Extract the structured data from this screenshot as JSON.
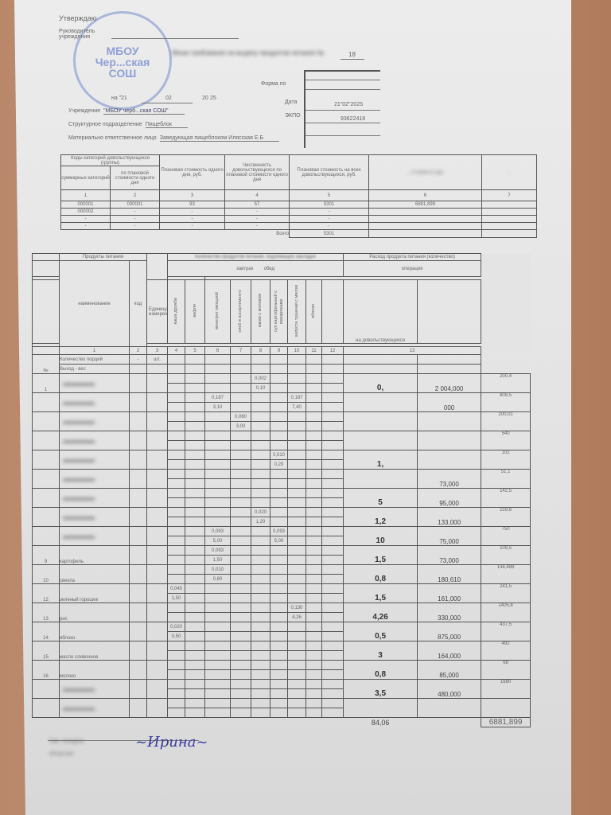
{
  "header": {
    "approve": "Утверждаю",
    "head_label": "Руководитель учреждения",
    "stamp_text": [
      "МБОУ",
      "Чер...ская",
      "СОШ"
    ],
    "doc_no": "18",
    "date_prefix": "на \"",
    "day": "21",
    "month": "02",
    "year_prefix": "20",
    "year": "25",
    "form_label": "Форма по",
    "date_label": "Дата",
    "date_value": "21\"02\"2025",
    "okpo_label": "ЭКПО",
    "okpo_value": "93622418",
    "institution_label": "Учреждение",
    "institution_value": "\"МБОУ черб...ская СОШ\"",
    "unit_label": "Структурное подразделение",
    "unit_value": "Пищеблок",
    "responsible_label": "Материально ответственное лицо",
    "responsible_value": "Заведующая пищеблоком Илясская Е.Б"
  },
  "categories_table": {
    "headers": [
      "Коды категорий довольствующихся (группы)",
      "суммарных категорий",
      "по плановой стоимости одного дня",
      "Плановая стоимость одного дня, руб.",
      "Численность довольствующихся по плановой стоимости одного дня",
      "Плановая стоимость на всех довольствующихся, руб.",
      "... стоимость руб.",
      "..."
    ],
    "col_numbers": [
      "1",
      "2",
      "3",
      "4",
      "5",
      "6",
      "7"
    ],
    "rows": [
      [
        "000001",
        "000001",
        "93",
        "57",
        "5301",
        "6881,899",
        ""
      ],
      [
        "000002",
        "-",
        "-",
        "-",
        "-",
        "",
        ""
      ],
      [
        "-",
        "-",
        "-",
        "-",
        "-",
        "",
        ""
      ],
      [
        "-",
        "-",
        "-",
        "-",
        "-",
        "",
        ""
      ]
    ],
    "total_label": "Всего",
    "total_value": "5301"
  },
  "products_table": {
    "h_products": "Продукты питания",
    "h_name": "наименование",
    "h_code": "код",
    "h_unit": "Единица измерения",
    "h_qty": "Количество продуктов питания, подлежащих закладке",
    "h_breakfast": "завтрак",
    "h_lunch": "обед",
    "dishes": [
      "каша дружба",
      "вафли",
      "винегрет овощной",
      "хлеб в ассортименте",
      "какао с молоком",
      "суп картофельный с макаронами",
      "капуста тушеная с мясом",
      "яблоко",
      ""
    ],
    "h_expense": "Расход продукта питания (количество)",
    "h_operation": "операция",
    "h_for": "на довольствующихся",
    "col_numbers": [
      "1",
      "2",
      "3",
      "4",
      "5",
      "6",
      "7",
      "8",
      "9",
      "10",
      "11",
      "12",
      "13"
    ],
    "portions_label": "Количество порций",
    "portions_code": "-",
    "portions_unit": "шт.",
    "yield_label": "Выход - вес",
    "no_label": "№",
    "rows": [
      {
        "no": "1",
        "name": "",
        "vals": {
          "8": [
            "0,002",
            "0,10"
          ]
        },
        "qty": "0,",
        "price": "2 004,000",
        "sum": "200,4"
      },
      {
        "no": "",
        "name": "",
        "vals": {
          "6": [
            "0,187",
            "3,10"
          ],
          "10": [
            "0,187",
            "7,40"
          ]
        },
        "qty": "",
        "price": "000",
        "sum": "808,5"
      },
      {
        "no": "",
        "name": "",
        "vals": {
          "7": [
            "0,060",
            "3,00"
          ]
        },
        "qty": "",
        "price": "",
        "sum": "200,01"
      },
      {
        "no": "",
        "name": "",
        "vals": {},
        "qty": "",
        "price": "",
        "sum": "540"
      },
      {
        "no": "",
        "name": "",
        "vals": {
          "9": [
            "0,010",
            "0,20"
          ]
        },
        "qty": "1,",
        "price": "",
        "sum": "102"
      },
      {
        "no": "",
        "name": "",
        "vals": {},
        "qty": "",
        "price": "73,000",
        "sum": "51,1"
      },
      {
        "no": "",
        "name": "",
        "vals": {},
        "qty": "5",
        "price": "95,000",
        "sum": "142,5"
      },
      {
        "no": "",
        "name": "",
        "vals": {
          "8": [
            "0,020",
            "1,20"
          ]
        },
        "qty": "1,2",
        "price": "133,000",
        "sum": "159,6"
      },
      {
        "no": "",
        "name": "",
        "vals": {
          "6": [
            "0,093",
            "5,00"
          ],
          "9": [
            "0,093",
            "5,00"
          ]
        },
        "qty": "10",
        "price": "75,000",
        "sum": "750"
      },
      {
        "no": "9",
        "name": "картофель",
        "vals": {
          "6": [
            "0,093",
            "1,50"
          ]
        },
        "qty": "1,5",
        "price": "73,000",
        "sum": "109,5"
      },
      {
        "no": "10",
        "name": "свекла",
        "vals": {
          "6": [
            "0,010",
            "0,80"
          ]
        },
        "qty": "0,8",
        "price": "180,610",
        "sum": "144,488"
      },
      {
        "no": "12",
        "name": "зеленый горошек",
        "vals": {
          "4": [
            "0,045",
            "1,50"
          ]
        },
        "qty": "1,5",
        "price": "161,000",
        "sum": "241,5"
      },
      {
        "no": "13",
        "name": "рис",
        "vals": {
          "10": [
            "0,130",
            "4,26"
          ]
        },
        "qty": "4,26",
        "price": "330,000",
        "sum": "1405,8"
      },
      {
        "no": "14",
        "name": "яблоко",
        "vals": {
          "4": [
            "0,020",
            "0,50"
          ]
        },
        "qty": "0,5",
        "price": "875,000",
        "sum": "437,5"
      },
      {
        "no": "15",
        "name": "масло сливочное",
        "vals": {},
        "qty": "3",
        "price": "164,000",
        "sum": "492"
      },
      {
        "no": "16",
        "name": "молоко",
        "vals": {},
        "qty": "0,8",
        "price": "85,000",
        "sum": "68"
      },
      {
        "no": "",
        "name": "",
        "vals": {},
        "qty": "3,5",
        "price": "480,000",
        "sum": "1680"
      },
      {
        "no": "",
        "name": "",
        "vals": {},
        "qty": "",
        "price": "",
        "sum": ""
      }
    ],
    "total_qty": "84,06",
    "total_sum": "6881,899"
  },
  "signature": "Ирина"
}
